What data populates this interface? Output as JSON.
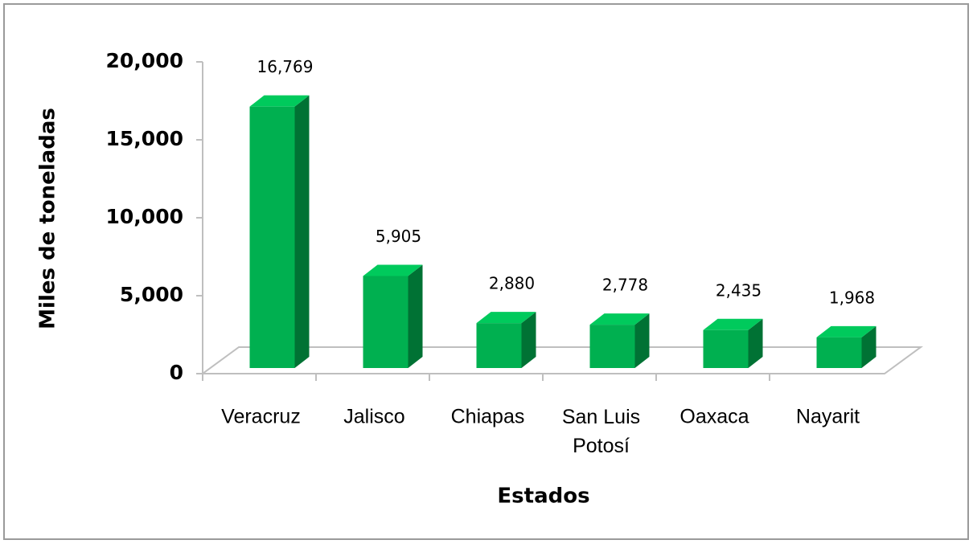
{
  "chart_data": {
    "type": "bar3d",
    "x_label": "Estados",
    "y_label": "Miles de toneladas",
    "categories": [
      "Veracruz",
      "Jalisco",
      "Chiapas",
      "San Luis Potosí",
      "Oaxaca",
      "Nayarit"
    ],
    "values": [
      16769,
      5905,
      2880,
      2778,
      2435,
      1968
    ],
    "value_labels": [
      "16,769",
      "5,905",
      "2,880",
      "2,778",
      "2,435",
      "1,968"
    ],
    "color": "#00b050",
    "ylim": [
      0,
      20000
    ],
    "yticks": [
      0,
      {
        "value": 5000,
        "label": "5,000"
      },
      {
        "value": 10000,
        "label": "10,000"
      },
      {
        "value": 15000,
        "label": "15,000"
      },
      {
        "value": 20000,
        "label": "20,000"
      }
    ]
  }
}
